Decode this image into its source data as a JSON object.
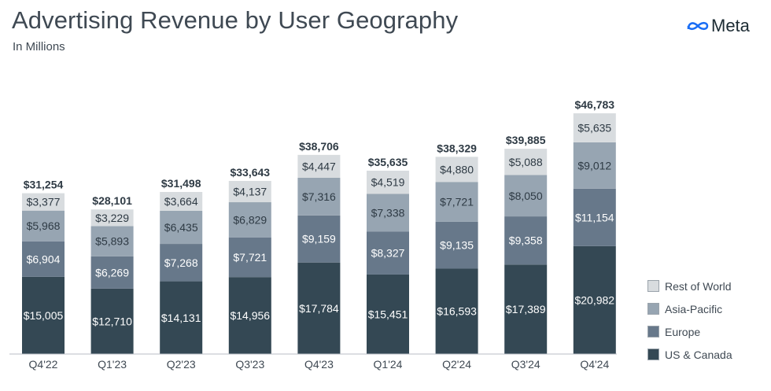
{
  "header": {
    "title": "Advertising Revenue by User Geography",
    "subtitle": "In Millions",
    "brand": "Meta"
  },
  "colors": {
    "us_canada": "#344854",
    "europe": "#67788a",
    "asia_pacific": "#97a5b2",
    "rest_of_world": "#d8dcdf",
    "text_dark": "#2e3a44"
  },
  "chart_data": {
    "type": "bar",
    "stacked": true,
    "categories": [
      "Q4'22",
      "Q1'23",
      "Q2'23",
      "Q3'23",
      "Q4'23",
      "Q1'24",
      "Q2'24",
      "Q3'24",
      "Q4'24"
    ],
    "series": [
      {
        "name": "US & Canada",
        "values": [
          15005,
          12710,
          14131,
          14956,
          17784,
          15451,
          16593,
          17389,
          20982
        ],
        "labels": [
          "$15,005",
          "$12,710",
          "$14,131",
          "$14,956",
          "$17,784",
          "$15,451",
          "$16,593",
          "$17,389",
          "$20,982"
        ]
      },
      {
        "name": "Europe",
        "values": [
          6904,
          6269,
          7268,
          7721,
          9159,
          8327,
          9135,
          9358,
          11154
        ],
        "labels": [
          "$6,904",
          "$6,269",
          "$7,268",
          "$7,721",
          "$9,159",
          "$8,327",
          "$9,135",
          "$9,358",
          "$11,154"
        ]
      },
      {
        "name": "Asia-Pacific",
        "values": [
          5968,
          5893,
          6435,
          6829,
          7316,
          7338,
          7721,
          8050,
          9012
        ],
        "labels": [
          "$5,968",
          "$5,893",
          "$6,435",
          "$6,829",
          "$7,316",
          "$7,338",
          "$7,721",
          "$8,050",
          "$9,012"
        ]
      },
      {
        "name": "Rest of World",
        "values": [
          3377,
          3229,
          3664,
          4137,
          4447,
          4519,
          4880,
          5088,
          5635
        ],
        "labels": [
          "$3,377",
          "$3,229",
          "$3,664",
          "$4,137",
          "$4,447",
          "$4,519",
          "$4,880",
          "$5,088",
          "$5,635"
        ]
      }
    ],
    "totals": [
      31254,
      28101,
      31498,
      33643,
      38706,
      35635,
      38329,
      39885,
      46783
    ],
    "total_labels": [
      "$31,254",
      "$28,101",
      "$31,498",
      "$33,643",
      "$38,706",
      "$35,635",
      "$38,329",
      "$39,885",
      "$46,783"
    ],
    "ylim": [
      0,
      50000
    ],
    "grid": false,
    "legend_position": "right"
  },
  "legend": [
    {
      "label": "Rest of World",
      "color": "#d8dcdf"
    },
    {
      "label": "Asia-Pacific",
      "color": "#97a5b2"
    },
    {
      "label": "Europe",
      "color": "#67788a"
    },
    {
      "label": "US & Canada",
      "color": "#344854"
    }
  ]
}
